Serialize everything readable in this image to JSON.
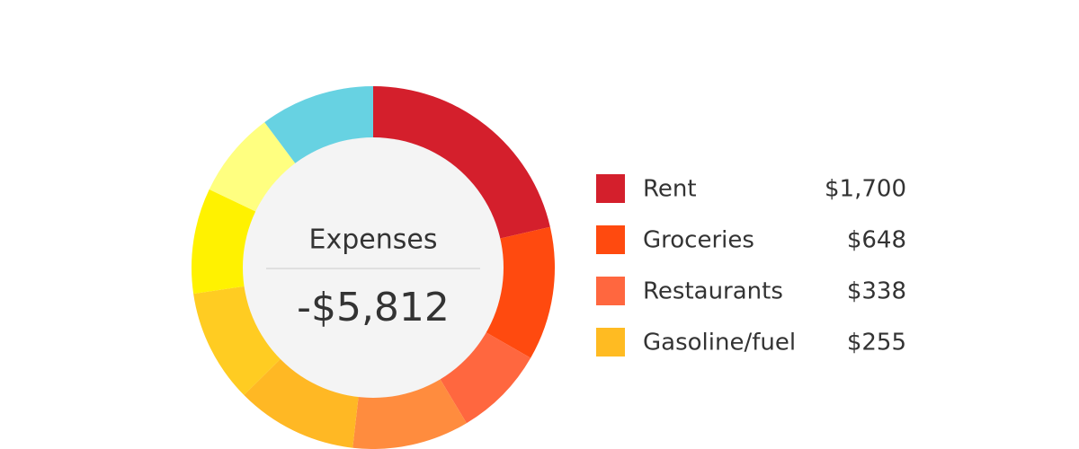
{
  "chart_data": {
    "type": "donut",
    "title": "Expenses",
    "total": "-$5,812",
    "values": [
      21.4,
      11.9,
      8.1,
      10.4,
      10.8,
      10.1,
      9.4,
      7.7,
      10.2
    ],
    "colors": [
      "#d41f2c",
      "#ff4a0f",
      "#ff673f",
      "#ff8c3e",
      "#ffb824",
      "#ffcc22",
      "#fff200",
      "#ffff80",
      "#67d2e2"
    ],
    "legend": [
      {
        "name": "Rent",
        "amount": "$1,700",
        "color": "#d41f2c"
      },
      {
        "name": "Groceries",
        "amount": "$648",
        "color": "#ff4a0f"
      },
      {
        "name": "Restaurants",
        "amount": "$338",
        "color": "#ff673f"
      },
      {
        "name": "Gasoline/fuel",
        "amount": "$255",
        "color": "#ffbb22"
      }
    ]
  }
}
